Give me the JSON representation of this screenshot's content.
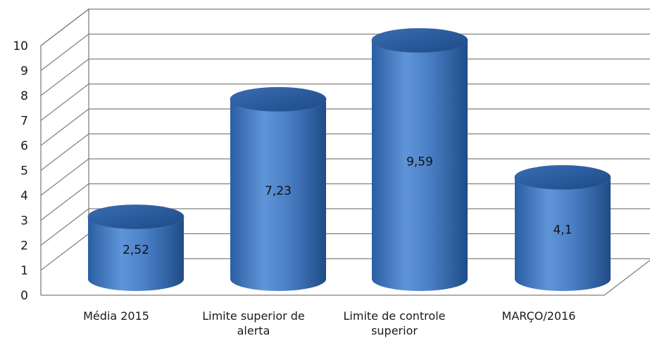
{
  "chart_data": {
    "type": "bar",
    "style": "3d-cylinder",
    "categories": [
      [
        "Média 2015"
      ],
      [
        "Limite superior de",
        "alerta"
      ],
      [
        "Limite de controle",
        "superior"
      ],
      [
        "MARÇO/2016"
      ]
    ],
    "values": [
      2.52,
      7.23,
      9.59,
      4.1
    ],
    "value_labels": [
      "2,52",
      "7,23",
      "9,59",
      "4,1"
    ],
    "y_ticks": [
      "0",
      "1",
      "2",
      "3",
      "4",
      "5",
      "6",
      "7",
      "8",
      "9",
      "10"
    ],
    "ylim": [
      0,
      10
    ],
    "grid": true,
    "legend": "none",
    "bar_color": "#4a7fc6",
    "gridline_color": "#7f7f7f"
  }
}
